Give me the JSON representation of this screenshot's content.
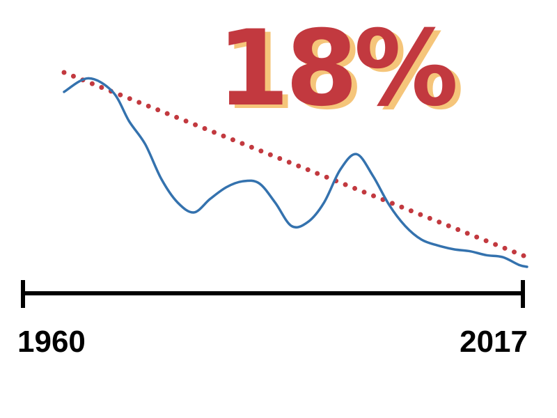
{
  "chart_data": {
    "type": "line",
    "headline": "18%",
    "x_start_label": "1960",
    "x_end_label": "2017",
    "xlim": [
      1960,
      2017
    ],
    "ylim": [
      0,
      100
    ],
    "grid": false,
    "series": [
      {
        "style": "solid",
        "x": [
          1960,
          1963,
          1966,
          1968,
          1970,
          1972,
          1974,
          1976,
          1978,
          1980,
          1982,
          1984,
          1986,
          1988,
          1990,
          1992,
          1994,
          1996,
          1998,
          2000,
          2002,
          2004,
          2006,
          2008,
          2010,
          2012,
          2014,
          2016,
          2017
        ],
        "values": [
          90,
          97,
          90,
          75,
          63,
          45,
          33,
          28,
          35,
          41,
          44,
          43,
          33,
          21,
          23,
          33,
          50,
          58,
          47,
          32,
          21,
          14,
          11,
          9,
          8,
          6,
          5,
          1,
          0
        ]
      },
      {
        "style": "dotted",
        "x": [
          1960,
          2017
        ],
        "values": [
          100,
          5
        ]
      }
    ],
    "colors": {
      "actual": "#3472ae",
      "trend": "#c2393f",
      "headline_fill": "#c2393f",
      "headline_shadow": "#f5c57a",
      "axis": "#000000"
    }
  }
}
